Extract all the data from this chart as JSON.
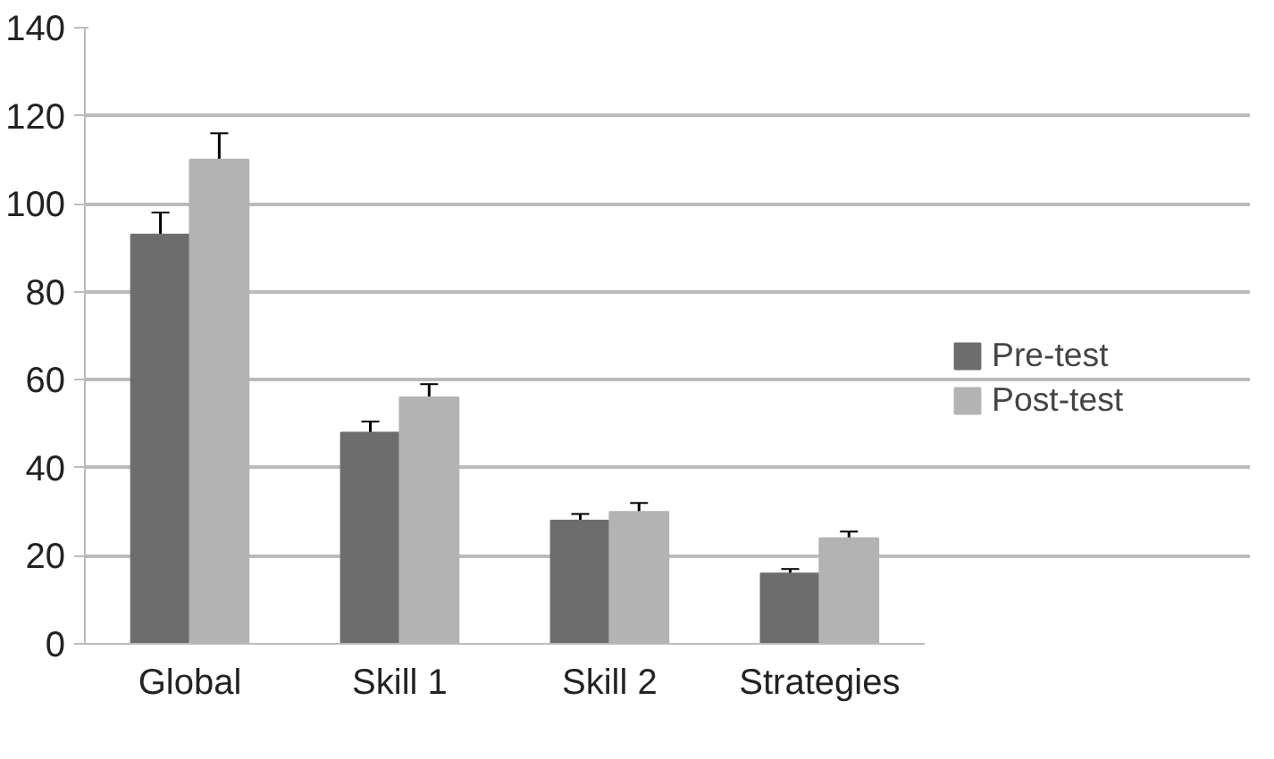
{
  "chart_data": {
    "type": "bar",
    "categories": [
      "Global",
      "Skill 1",
      "Skill 2",
      "Strategies"
    ],
    "series": [
      {
        "name": "Pre-test",
        "color": "#6d6d6d",
        "values": [
          93,
          48,
          28,
          16
        ],
        "errors": [
          5,
          2.5,
          1.5,
          1
        ]
      },
      {
        "name": "Post-test",
        "color": "#b3b3b3",
        "values": [
          110,
          56,
          30,
          24
        ],
        "errors": [
          6,
          3,
          2,
          1.5
        ]
      }
    ],
    "ylim": [
      0,
      140
    ],
    "yticks": [
      0,
      20,
      40,
      60,
      80,
      100,
      120,
      140
    ],
    "grid": "y",
    "legend": "right"
  }
}
